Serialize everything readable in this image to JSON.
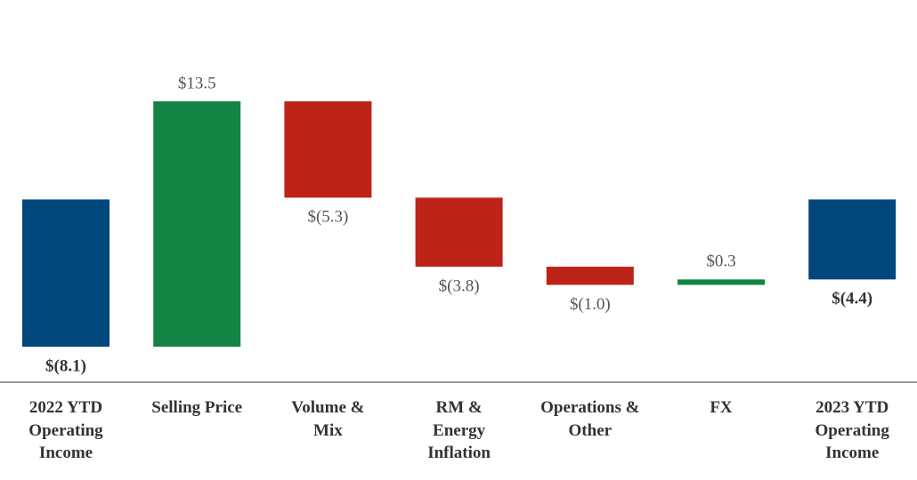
{
  "chart_data": {
    "type": "waterfall",
    "categories": [
      "2022 YTD\nOperating\nIncome",
      "Selling Price",
      "Volume &\nMix",
      "RM &\nEnergy\nInflation",
      "Operations &\nOther",
      "FX",
      "2023 YTD\nOperating\nIncome"
    ],
    "values": [
      -8.1,
      13.5,
      -5.3,
      -3.8,
      -1.0,
      0.3,
      -4.4
    ],
    "value_labels": [
      "$(8.1)",
      "$13.5",
      "$(5.3)",
      "$(3.8)",
      "$(1.0)",
      "$0.3",
      "$(4.4)"
    ],
    "totals": [
      true,
      false,
      false,
      false,
      false,
      false,
      true
    ],
    "total_color": "#00477b",
    "increase_color": "#138443",
    "decrease_color": "#be2318"
  }
}
